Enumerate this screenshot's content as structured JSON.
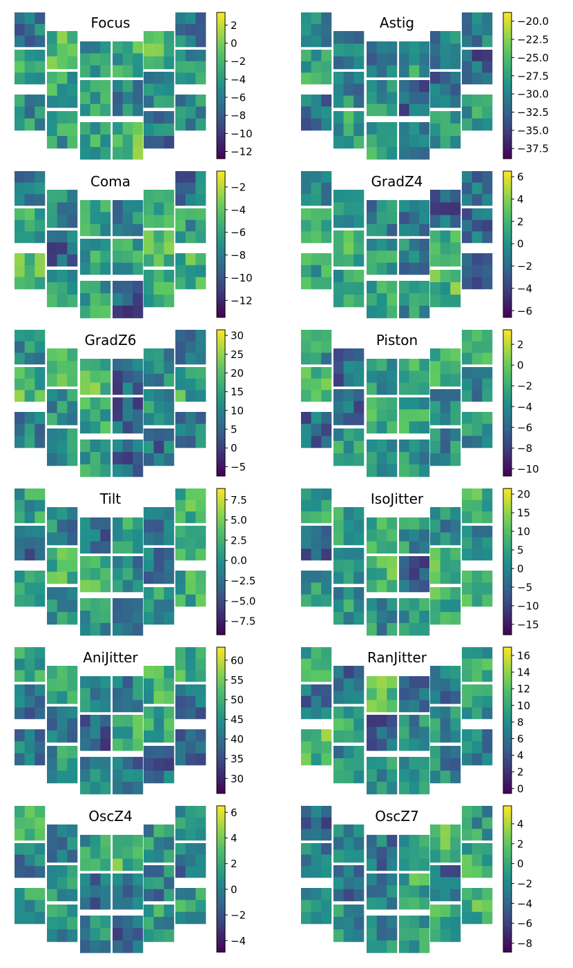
{
  "figure": {
    "colormap": "viridis",
    "colormap_stops": [
      "#440154",
      "#3b528b",
      "#21918c",
      "#5ec962",
      "#fde725"
    ]
  },
  "chart_data": [
    {
      "type": "heatmap",
      "title": "Focus",
      "colorbar_ticks": [
        "2",
        "0",
        "−2",
        "−4",
        "−6",
        "−8",
        "−10",
        "−12"
      ],
      "tick_values": [
        2,
        0,
        -2,
        -4,
        -6,
        -8,
        -10,
        -12
      ],
      "vmin": -12.8,
      "vmax": 3.4
    },
    {
      "type": "heatmap",
      "title": "Astig",
      "colorbar_ticks": [
        "−20.0",
        "−22.5",
        "−25.0",
        "−27.5",
        "−30.0",
        "−32.5",
        "−35.0",
        "−37.5"
      ],
      "tick_values": [
        -20.0,
        -22.5,
        -25.0,
        -27.5,
        -30.0,
        -32.5,
        -35.0,
        -37.5
      ],
      "vmin": -38.9,
      "vmax": -18.8
    },
    {
      "type": "heatmap",
      "title": "Coma",
      "colorbar_ticks": [
        "−2",
        "−4",
        "−6",
        "−8",
        "−10",
        "−12"
      ],
      "tick_values": [
        -2,
        -4,
        -6,
        -8,
        -10,
        -12
      ],
      "vmin": -13.5,
      "vmax": -0.6
    },
    {
      "type": "heatmap",
      "title": "GradZ4",
      "colorbar_ticks": [
        "6",
        "4",
        "2",
        "0",
        "−2",
        "−4",
        "−6"
      ],
      "tick_values": [
        6,
        4,
        2,
        0,
        -2,
        -4,
        -6
      ],
      "vmin": -6.6,
      "vmax": 6.5
    },
    {
      "type": "heatmap",
      "title": "GradZ6",
      "colorbar_ticks": [
        "30",
        "25",
        "20",
        "15",
        "10",
        "5",
        "0",
        "−5"
      ],
      "tick_values": [
        30,
        25,
        20,
        15,
        10,
        5,
        0,
        -5
      ],
      "vmin": -7.5,
      "vmax": 31.5
    },
    {
      "type": "heatmap",
      "title": "Piston",
      "colorbar_ticks": [
        "2",
        "0",
        "−2",
        "−4",
        "−6",
        "−8",
        "−10"
      ],
      "tick_values": [
        2,
        0,
        -2,
        -4,
        -6,
        -8,
        -10
      ],
      "vmin": -10.7,
      "vmax": 3.4
    },
    {
      "type": "heatmap",
      "title": "Tilt",
      "colorbar_ticks": [
        "7.5",
        "5.0",
        "2.5",
        "0.0",
        "−2.5",
        "−5.0",
        "−7.5"
      ],
      "tick_values": [
        7.5,
        5.0,
        2.5,
        0.0,
        -2.5,
        -5.0,
        -7.5
      ],
      "vmin": -9.2,
      "vmax": 8.9
    },
    {
      "type": "heatmap",
      "title": "IsoJitter",
      "colorbar_ticks": [
        "20",
        "15",
        "10",
        "5",
        "0",
        "−5",
        "−10",
        "−15"
      ],
      "tick_values": [
        20,
        15,
        10,
        5,
        0,
        -5,
        -10,
        -15
      ],
      "vmin": -17.8,
      "vmax": 21.5
    },
    {
      "type": "heatmap",
      "title": "AniJitter",
      "colorbar_ticks": [
        "60",
        "55",
        "50",
        "45",
        "40",
        "35",
        "30"
      ],
      "tick_values": [
        60,
        55,
        50,
        45,
        40,
        35,
        30
      ],
      "vmin": 26.2,
      "vmax": 63.3
    },
    {
      "type": "heatmap",
      "title": "RanJitter",
      "colorbar_ticks": [
        "16",
        "14",
        "12",
        "10",
        "8",
        "6",
        "4",
        "2",
        "0"
      ],
      "tick_values": [
        16,
        14,
        12,
        10,
        8,
        6,
        4,
        2,
        0
      ],
      "vmin": -0.6,
      "vmax": 17.0
    },
    {
      "type": "heatmap",
      "title": "OscZ4",
      "colorbar_ticks": [
        "6",
        "4",
        "2",
        "0",
        "−2",
        "−4"
      ],
      "tick_values": [
        6,
        4,
        2,
        0,
        -2,
        -4
      ],
      "vmin": -4.9,
      "vmax": 6.5
    },
    {
      "type": "heatmap",
      "title": "OscZ7",
      "colorbar_ticks": [
        "4",
        "2",
        "0",
        "−2",
        "−4",
        "−6",
        "−8"
      ],
      "tick_values": [
        4,
        2,
        0,
        -2,
        -4,
        -6,
        -8
      ],
      "vmin": -8.9,
      "vmax": 5.8
    }
  ]
}
